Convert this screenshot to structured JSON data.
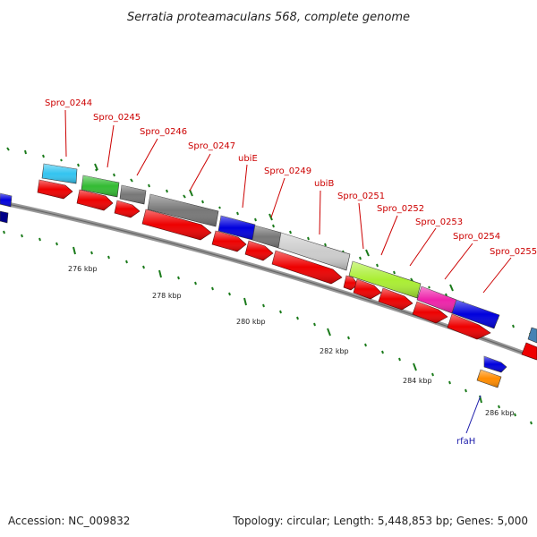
{
  "title": "Serratia proteamaculans 568, complete genome",
  "footer": {
    "accession": "Accession: NC_009832",
    "summary": "Topology: circular; Length: 5,448,853 bp; Genes: 5,000"
  },
  "colors": {
    "background": "#ffffff",
    "backbone": "#888888",
    "cds": "#ee0000",
    "tick": "#1a7a1a",
    "label_forward": "#cc0000",
    "label_reverse": "#1a1aaa"
  },
  "tick_labels": [
    "276 kbp",
    "278 kbp",
    "280 kbp",
    "282 kbp",
    "284 kbp",
    "286 kbp"
  ],
  "gene_labels": [
    {
      "text": "Spro_0244",
      "color": "#cc0000"
    },
    {
      "text": "Spro_0245",
      "color": "#cc0000"
    },
    {
      "text": "Spro_0246",
      "color": "#cc0000"
    },
    {
      "text": "Spro_0247",
      "color": "#cc0000"
    },
    {
      "text": "ubiE",
      "color": "#cc0000"
    },
    {
      "text": "Spro_0249",
      "color": "#cc0000"
    },
    {
      "text": "ubiB",
      "color": "#cc0000"
    },
    {
      "text": "Spro_0251",
      "color": "#cc0000"
    },
    {
      "text": "Spro_0252",
      "color": "#cc0000"
    },
    {
      "text": "Spro_0253",
      "color": "#cc0000"
    },
    {
      "text": "Spro_0254",
      "color": "#cc0000"
    },
    {
      "text": "Spro_0255",
      "color": "#cc0000"
    },
    {
      "text": "rfaH",
      "color": "#1a1aaa"
    }
  ],
  "gene_colors": [
    "#33c4f0",
    "#33bb33",
    "#777777",
    "#777777",
    "#0000dd",
    "#777777",
    "#cccccc",
    "#aaee33",
    "#ee22aa",
    "#0000dd"
  ]
}
